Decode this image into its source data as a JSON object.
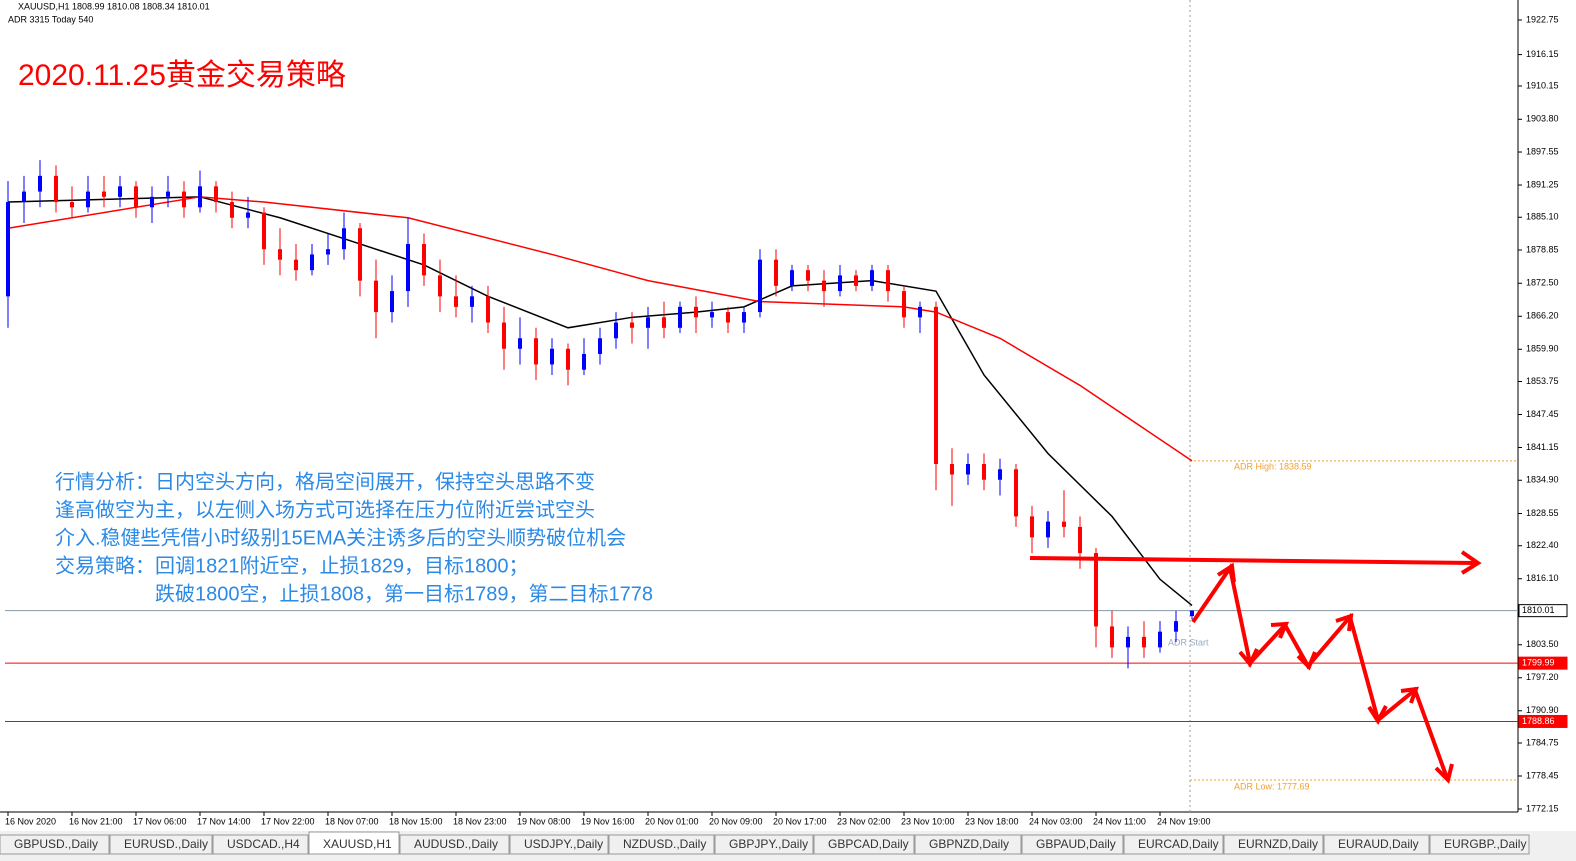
{
  "chart_data": {
    "type": "candlestick",
    "symbol_header": "XAUUSD,H1  1808.99 1810.08 1808.34 1810.01",
    "adr_header": "ADR 3315  Today 540",
    "title": "2020.11.25黄金交易策略",
    "annotations": [
      "行情分析：日内空头方向，格局空间展开，保持空头思路不变",
      "逢高做空为主，以左侧入场方式可选择在压力位附近尝试空头",
      "介入.稳健些凭借小时级别15EMA关注诱多后的空头顺势破位机会",
      "交易策略：回调1821附近空，止损1829，目标1800；",
      "跌破1800空，止损1808，第一目标1789，第二目标1778"
    ],
    "up_color": "#0000ff",
    "down_color": "#ff0000",
    "open": [
      1870,
      1888,
      1890,
      1893,
      1888,
      1887,
      1890,
      1889,
      1891,
      1887,
      1889,
      1890,
      1887,
      1891,
      1888,
      1885,
      1886,
      1879,
      1877,
      1875,
      1878,
      1879,
      1883,
      1873,
      1867,
      1871,
      1880,
      1874,
      1870,
      1868,
      1870,
      1865,
      1860,
      1862,
      1857,
      1860,
      1856,
      1859,
      1862,
      1865,
      1864,
      1866,
      1864,
      1868,
      1866,
      1867,
      1865,
      1867,
      1877,
      1872,
      1875,
      1873,
      1871,
      1874,
      1872,
      1875,
      1871,
      1866,
      1868,
      1838,
      1836,
      1838,
      1835,
      1837,
      1828,
      1824,
      1827,
      1826,
      1821,
      1807,
      1803,
      1805,
      1803,
      1806,
      1808.99
    ],
    "high": [
      1892,
      1893,
      1896,
      1895,
      1891,
      1893,
      1893,
      1893,
      1892,
      1891,
      1893,
      1892,
      1894,
      1892,
      1890,
      1889,
      1887,
      1883,
      1880,
      1880,
      1882,
      1886,
      1884,
      1877,
      1874,
      1885,
      1882,
      1877,
      1874,
      1872,
      1872,
      1868,
      1866,
      1864,
      1862,
      1861,
      1862,
      1864,
      1867,
      1867,
      1868,
      1869,
      1869,
      1870,
      1869,
      1868,
      1868,
      1879,
      1879,
      1876,
      1876,
      1875,
      1876,
      1875,
      1876,
      1876,
      1872,
      1869,
      1869,
      1841,
      1840,
      1840,
      1839,
      1838,
      1830,
      1829,
      1833,
      1828,
      1822,
      1810,
      1807,
      1808,
      1808,
      1810,
      1810.08
    ],
    "low": [
      1864,
      1884,
      1887,
      1886,
      1885,
      1886,
      1887,
      1887,
      1885,
      1884,
      1887,
      1885,
      1886,
      1886,
      1883,
      1883,
      1876,
      1874,
      1873,
      1874,
      1876,
      1877,
      1870,
      1862,
      1865,
      1868,
      1872,
      1867,
      1866,
      1865,
      1863,
      1856,
      1857,
      1854,
      1855,
      1853,
      1855,
      1857,
      1860,
      1861,
      1860,
      1862,
      1863,
      1863,
      1864,
      1863,
      1863,
      1866,
      1870,
      1871,
      1871,
      1868,
      1870,
      1871,
      1871,
      1869,
      1864,
      1863,
      1833,
      1830,
      1834,
      1833,
      1832,
      1826,
      1821,
      1822,
      1824,
      1818,
      1803,
      1801,
      1799,
      1801,
      1802,
      1804,
      1808.34
    ],
    "close": [
      1888,
      1890,
      1893,
      1888,
      1887,
      1890,
      1889,
      1891,
      1887,
      1889,
      1890,
      1887,
      1891,
      1888,
      1885,
      1886,
      1879,
      1877,
      1875,
      1878,
      1879,
      1883,
      1873,
      1867,
      1871,
      1880,
      1874,
      1870,
      1868,
      1870,
      1865,
      1860,
      1862,
      1857,
      1860,
      1856,
      1859,
      1862,
      1865,
      1864,
      1866,
      1864,
      1868,
      1866,
      1867,
      1865,
      1867,
      1877,
      1872,
      1875,
      1873,
      1871,
      1874,
      1872,
      1875,
      1871,
      1866,
      1868,
      1838,
      1836,
      1838,
      1835,
      1837,
      1828,
      1824,
      1827,
      1826,
      1821,
      1807,
      1803,
      1805,
      1803,
      1806,
      1808,
      1810.01
    ],
    "series": [
      {
        "color": "#000000",
        "x": [
          0,
          12,
          17,
          22,
          26,
          30,
          35,
          39,
          43,
          46,
          49,
          54,
          58,
          61,
          65,
          69,
          72,
          74
        ],
        "values": [
          1888,
          1889,
          1885,
          1880,
          1876,
          1870,
          1864,
          1866,
          1867,
          1868,
          1872,
          1873,
          1871,
          1855,
          1840,
          1828,
          1816,
          1811
        ]
      },
      {
        "color": "#ff0000",
        "x": [
          0,
          12,
          16,
          25,
          34,
          40,
          47,
          56,
          58,
          62,
          67,
          74
        ],
        "values": [
          1883,
          1889,
          1888,
          1885,
          1878,
          1873,
          1869,
          1868,
          1867,
          1862,
          1853,
          1838.59
        ]
      }
    ],
    "levels": [
      {
        "value": 1810.01,
        "label": "1810.01",
        "color": "#8899aa"
      },
      {
        "value": 1799.99,
        "label": "1799.99",
        "color": "#ff0000"
      },
      {
        "value": 1788.86,
        "label": "1788.86",
        "color": "#ff0000"
      }
    ],
    "adr_high": {
      "value": 1838.59,
      "label": "ADR High: 1838.59"
    },
    "adr_low": {
      "value": 1777.69,
      "label": "ADR Low: 1777.69"
    },
    "adr_start": "ADR Start",
    "ylim": [
      1772.15,
      1922.75
    ],
    "yticks": [
      1922.75,
      1916.15,
      1910.15,
      {
        "value": 1903.8,
        "label": "1903.80"
      },
      1897.55,
      1891.25,
      {
        "value": 1885.1,
        "label": "1885.10"
      },
      1878.85,
      {
        "value": 1872.5,
        "label": "1872.50"
      },
      {
        "value": 1866.2,
        "label": "1866.20"
      },
      {
        "value": 1859.9,
        "label": "1859.90"
      },
      1853.75,
      1847.45,
      1841.15,
      {
        "value": 1834.9,
        "label": "1834.90"
      },
      1828.55,
      {
        "value": 1822.4,
        "label": "1822.40"
      },
      {
        "value": 1816.1,
        "label": "1816.10"
      },
      {
        "value": 1803.5,
        "label": "1803.50"
      },
      {
        "value": 1797.2,
        "label": "1797.20"
      },
      {
        "value": 1790.9,
        "label": "1790.90"
      },
      1784.75,
      1778.45,
      1772.15
    ],
    "xticks": [
      {
        "value": 0,
        "label": "16 Nov 2020"
      },
      {
        "value": 4,
        "label": "16 Nov 21:00"
      },
      {
        "value": 8,
        "label": "17 Nov 06:00"
      },
      {
        "value": 12,
        "label": "17 Nov 14:00"
      },
      {
        "value": 16,
        "label": "17 Nov 22:00"
      },
      {
        "value": 20,
        "label": "18 Nov 07:00"
      },
      {
        "value": 24,
        "label": "18 Nov 15:00"
      },
      {
        "value": 28,
        "label": "18 Nov 23:00"
      },
      {
        "value": 32,
        "label": "19 Nov 08:00"
      },
      {
        "value": 36,
        "label": "19 Nov 16:00"
      },
      {
        "value": 40,
        "label": "20 Nov 01:00"
      },
      {
        "value": 44,
        "label": "20 Nov 09:00"
      },
      {
        "value": 48,
        "label": "20 Nov 17:00"
      },
      {
        "value": 52,
        "label": "23 Nov 02:00"
      },
      {
        "value": 56,
        "label": "23 Nov 10:00"
      },
      {
        "value": 60,
        "label": "23 Nov 18:00"
      },
      {
        "value": 64,
        "label": "24 Nov 03:00"
      },
      {
        "value": 68,
        "label": "24 Nov 11:00"
      },
      {
        "value": 72,
        "label": "24 Nov 19:00"
      }
    ],
    "tabs": [
      "GBPUSD.,Daily",
      "EURUSD.,Daily",
      "USDCAD.,H4",
      "XAUUSD,H1",
      "AUDUSD.,Daily",
      "USDJPY.,Daily",
      "NZDUSD.,Daily",
      "GBPJPY.,Daily",
      "GBPCAD,Daily",
      "GBPNZD,Daily",
      "GBPAUD,Daily",
      "EURCAD,Daily",
      "EURNZD,Daily",
      "EURAUD,Daily",
      "EURGBP.,Daily"
    ],
    "active_tab": 3
  }
}
